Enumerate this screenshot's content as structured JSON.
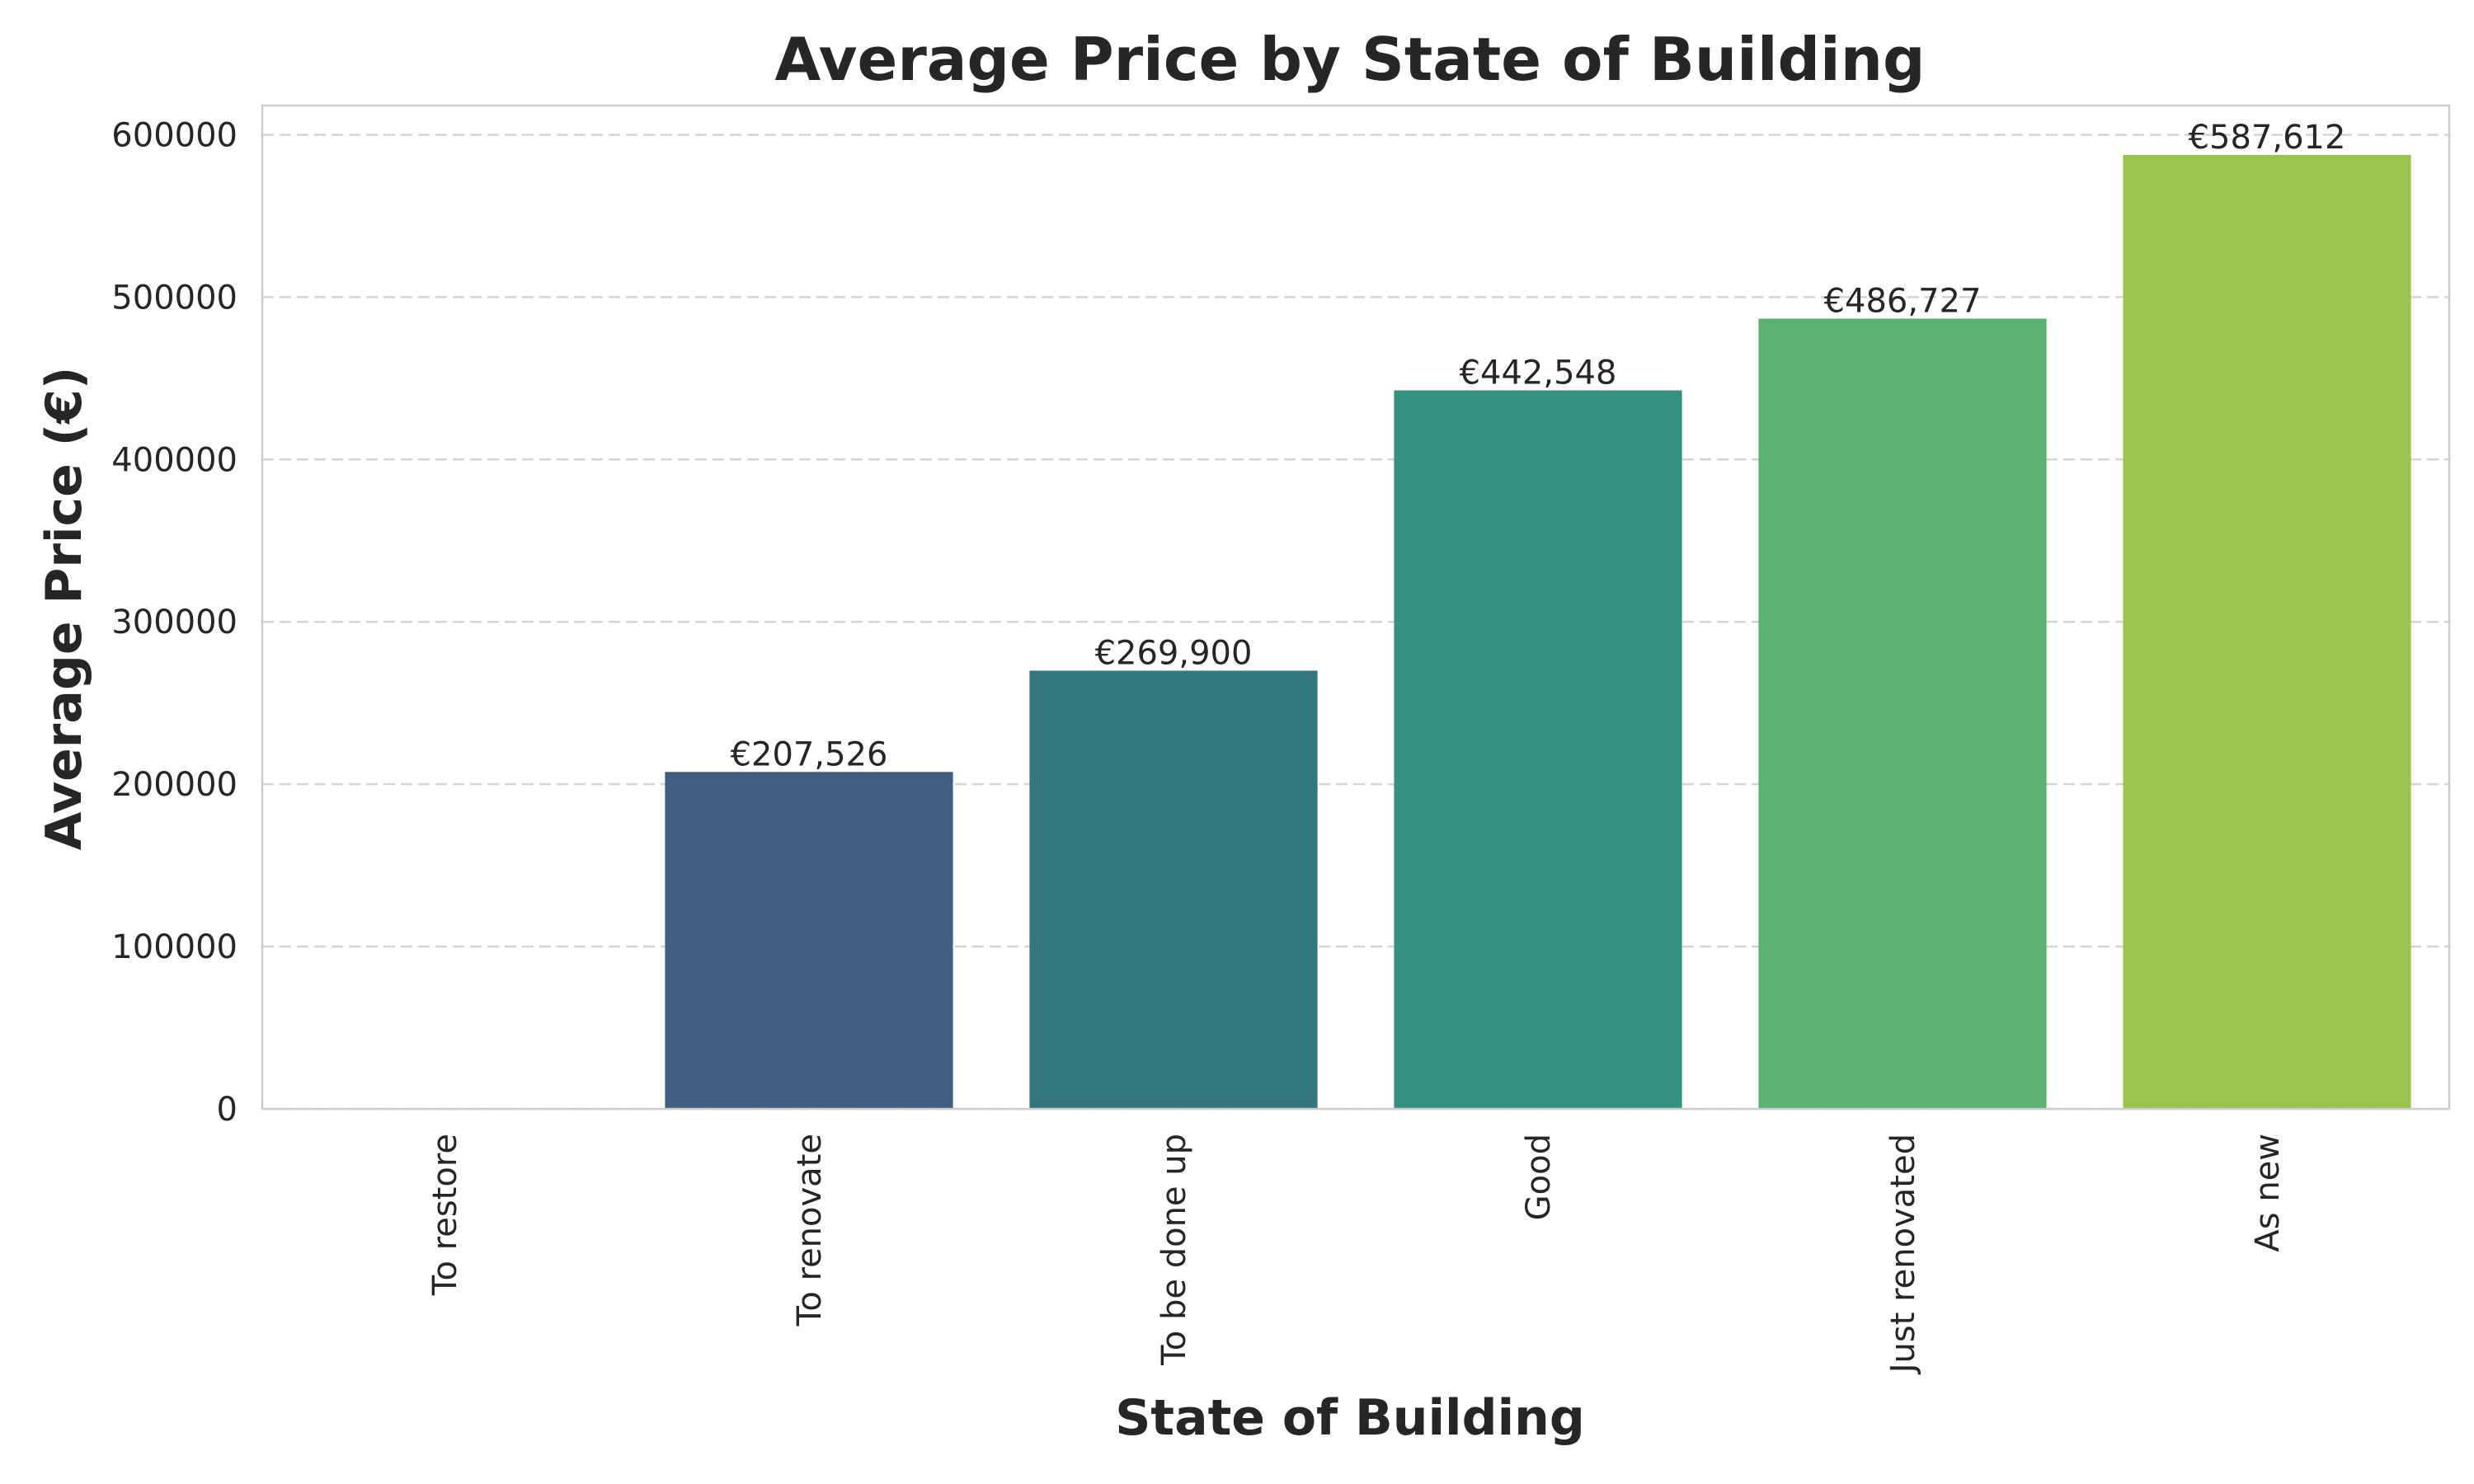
{
  "chart_data": {
    "type": "bar",
    "title": "Average Price by State of Building",
    "xlabel": "State of Building",
    "ylabel": "Average Price (€)",
    "categories": [
      "To restore",
      "To renovate",
      "To be done up",
      "Good",
      "Just renovated",
      "As new"
    ],
    "values": [
      0,
      207526,
      269900,
      442548,
      486727,
      587612
    ],
    "data_labels": [
      "",
      "€207,526",
      "€269,900",
      "€442,548",
      "€486,727",
      "€587,612"
    ],
    "colors": [
      "#482677",
      "#415e82",
      "#34767f",
      "#32917f",
      "#5ab172",
      "#9ac54c"
    ],
    "ylim": [
      0,
      618000
    ],
    "yticks": [
      0,
      100000,
      200000,
      300000,
      400000,
      500000,
      600000
    ],
    "ytick_labels": [
      "0",
      "100000",
      "200000",
      "300000",
      "400000",
      "500000",
      "600000"
    ],
    "grid": "y-dashed",
    "x_tick_rotation": "vertical"
  }
}
